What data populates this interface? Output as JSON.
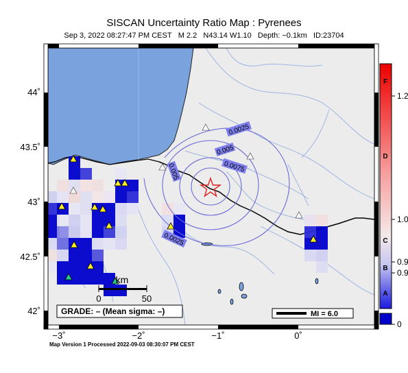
{
  "title": "SISCAN Uncertainty Ratio Map : Pyrenees",
  "event": {
    "datetime": "Sep  3, 2022 08:27:47 PM CEST",
    "magnitude": "M 2.2",
    "location": "N43.14 W1.10",
    "depth": "Depth: −0.1km",
    "id": "ID:23704"
  },
  "axes": {
    "y_ticks": [
      "44˚",
      "43.5˚",
      "43˚",
      "42.5˚",
      "42˚"
    ],
    "x_ticks": [
      "−3˚",
      "−2˚",
      "−1˚",
      "0˚"
    ]
  },
  "contour_labels": [
    "0.0025",
    "0.005",
    "0.0075",
    "0.005",
    "0.0025"
  ],
  "scale_bar": {
    "unit": "km",
    "start": "0",
    "end": "50"
  },
  "grade_box": "GRADE: – (Mean sigma: –)",
  "mi_legend": "MI = 6.0",
  "colorbar": {
    "value_labels": [
      "1.2",
      "1.0",
      "0.9",
      "0.9",
      "0"
    ],
    "grade_letters": [
      "F",
      "D",
      "C",
      "B",
      "A"
    ]
  },
  "footer": "Map Version 1 Processed 2022-09-03 08:30:07 PM CEST",
  "colors": {
    "sea": "#7aa2dd",
    "land": "#ececec",
    "cell_blue": "#0000cc",
    "epicenter": "#dd2222"
  }
}
